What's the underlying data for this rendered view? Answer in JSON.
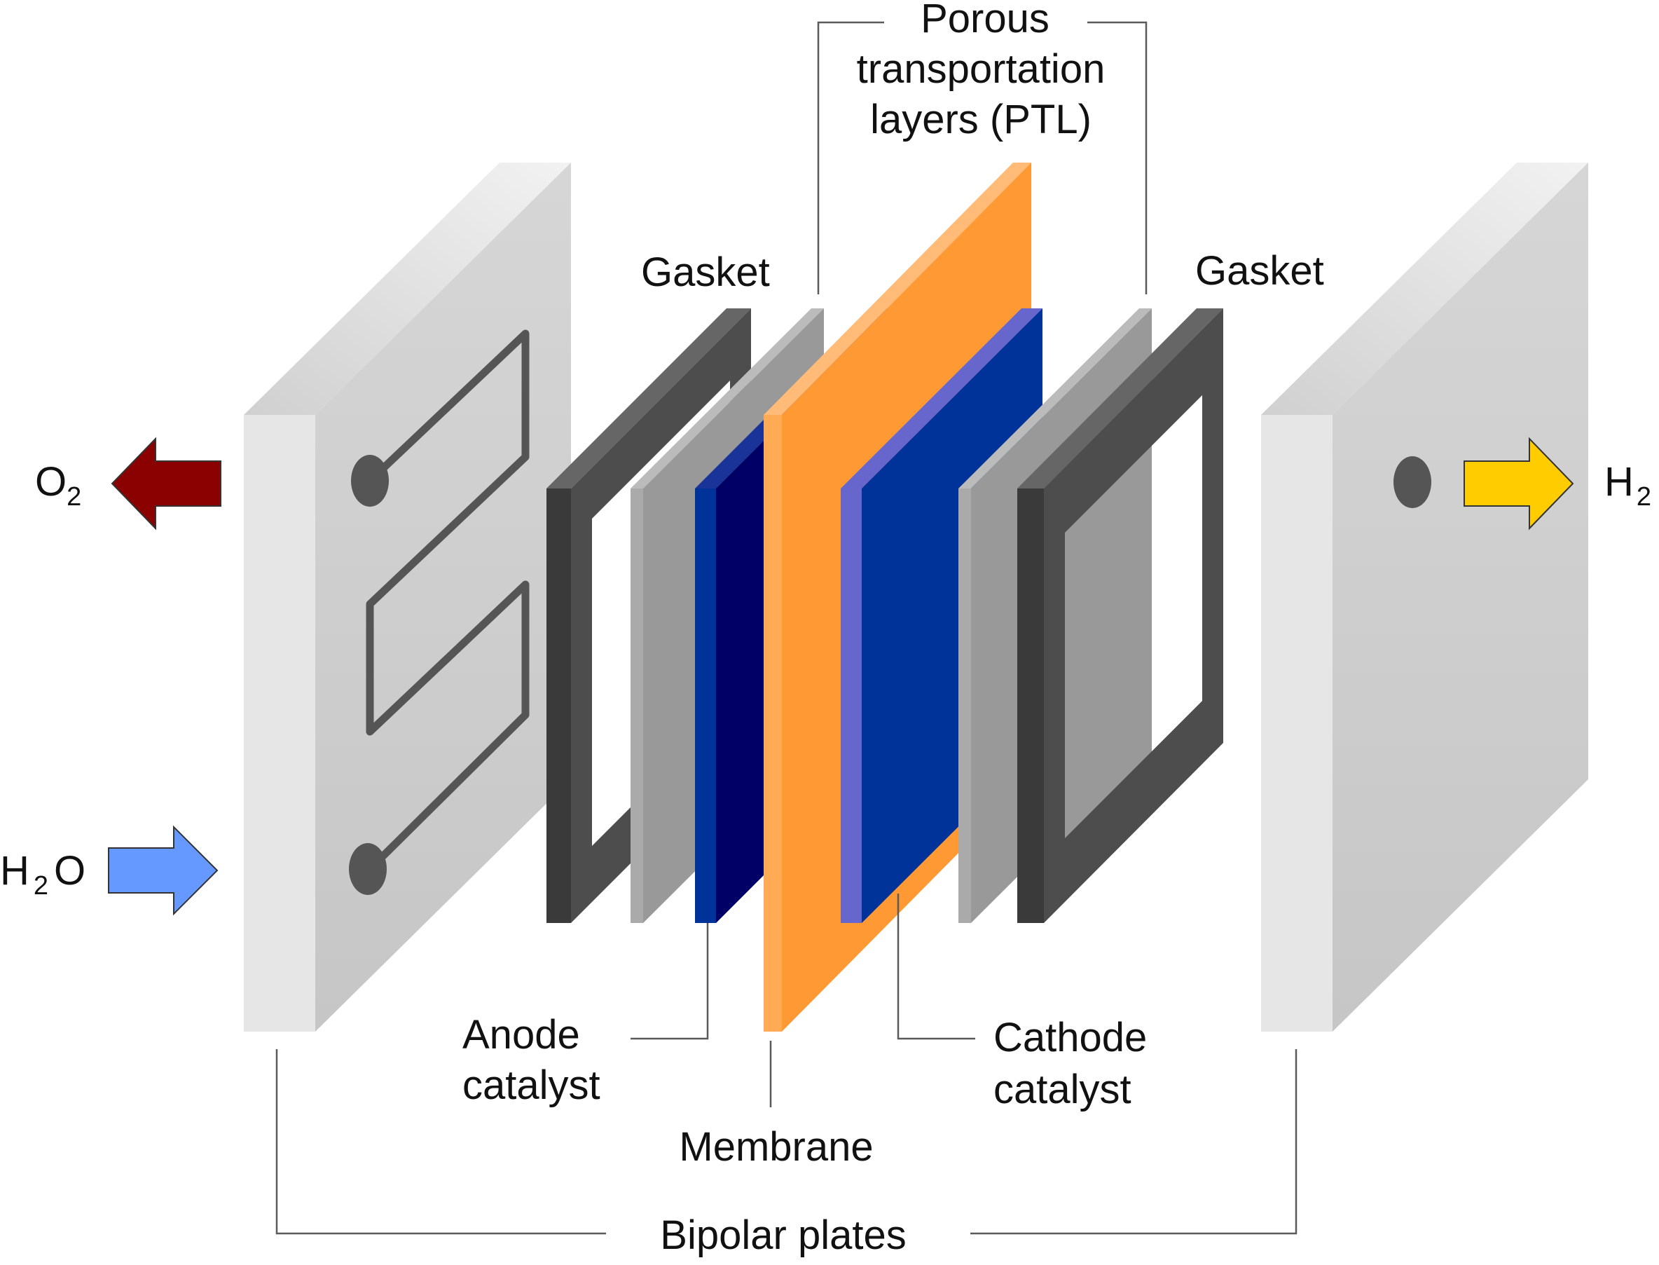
{
  "labels": {
    "ptl_line1": "Porous",
    "ptl_line2": "transportation",
    "ptl_line3": "layers (PTL)",
    "gasket_left": "Gasket",
    "gasket_right": "Gasket",
    "anode_line1": "Anode",
    "anode_line2": "catalyst",
    "cathode_line1": "Cathode",
    "cathode_line2": "catalyst",
    "membrane": "Membrane",
    "bipolar": "Bipolar plates"
  },
  "flows": {
    "o2": {
      "main": "O",
      "sub": "2",
      "color": "#8b0000"
    },
    "h2o": {
      "main_a": "H",
      "sub": "2",
      "main_b": "O",
      "color": "#6699ff"
    },
    "h2": {
      "main": "H",
      "sub": "2",
      "color": "#ffcc00"
    }
  },
  "colors": {
    "plate_front": "#e6e6e6",
    "plate_face": "#cccccc",
    "plate_top": "#dddddd",
    "gasket": "#4d4d4d",
    "ptl": "#999999",
    "anode_catalyst": "#000066",
    "cathode_catalyst": "#003399",
    "membrane": "#ff9933"
  }
}
